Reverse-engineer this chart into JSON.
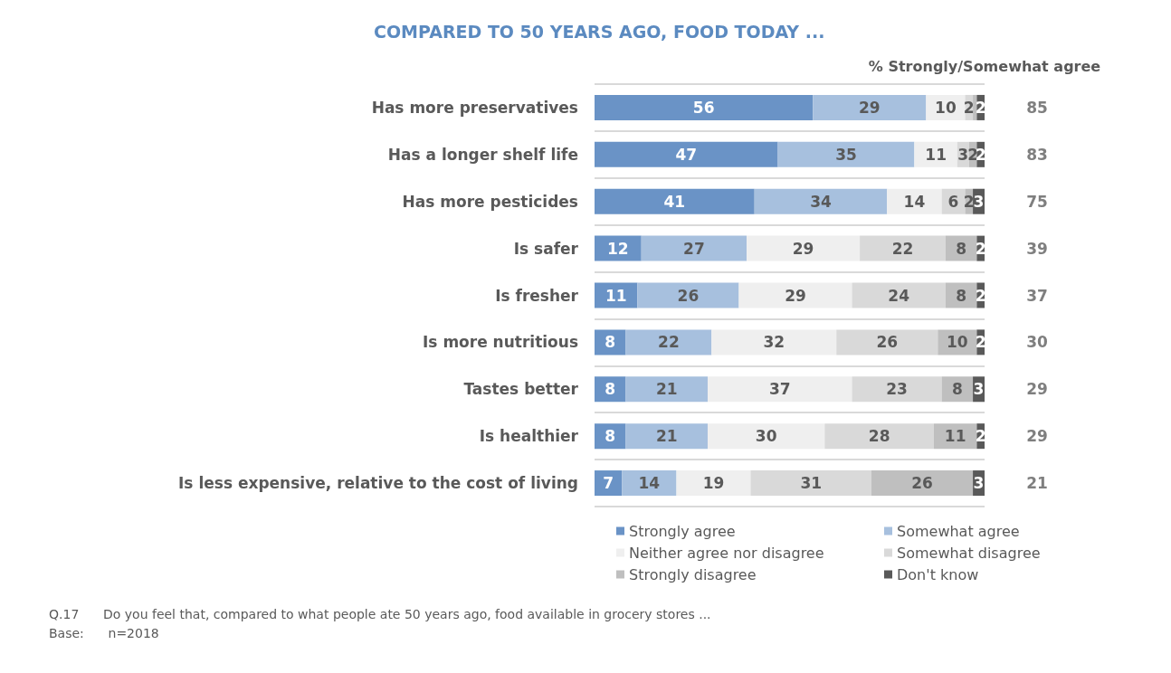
{
  "chart_data": {
    "type": "bar",
    "orientation": "horizontal",
    "stacked": true,
    "title": "COMPARED TO 50 YEARS AGO, FOOD TODAY ...",
    "y2label": "% Strongly/Somewhat agree",
    "categories": [
      "Has more preservatives",
      "Has a longer shelf life",
      "Has more pesticides",
      "Is safer",
      "Is fresher",
      "Is more nutritious",
      "Tastes better",
      "Is healthier",
      "Is less expensive, relative to the cost of living"
    ],
    "series": [
      {
        "name": "Strongly agree",
        "color": "#6a93c6",
        "values": [
          56,
          47,
          41,
          12,
          11,
          8,
          8,
          8,
          7
        ]
      },
      {
        "name": "Somewhat agree",
        "color": "#a7c0de",
        "values": [
          29,
          35,
          34,
          27,
          26,
          22,
          21,
          21,
          14
        ]
      },
      {
        "name": "Neither agree nor disagree",
        "color": "#efefef",
        "values": [
          10,
          11,
          14,
          29,
          29,
          32,
          37,
          30,
          19
        ]
      },
      {
        "name": "Somewhat disagree",
        "color": "#d9d9d9",
        "values": [
          2,
          3,
          6,
          22,
          24,
          26,
          23,
          28,
          31
        ]
      },
      {
        "name": "Strongly disagree",
        "color": "#bfbfbf",
        "values": [
          1,
          2,
          2,
          8,
          8,
          10,
          8,
          11,
          26
        ],
        "value_labels": [
          null,
          "2",
          "2",
          "8",
          "8",
          "10",
          "8",
          "11",
          "26"
        ]
      },
      {
        "name": "Don't know",
        "color": "#595959",
        "values": [
          2,
          2,
          3,
          2,
          2,
          2,
          3,
          2,
          3
        ]
      }
    ],
    "data_labels": true,
    "grid": "y",
    "legend": "bottom",
    "annotations": [
      "85",
      "83",
      "75",
      "39",
      "37",
      "30",
      "29",
      "29",
      "21",
      "Q.17      Do you feel that, compared to what people ate 50 years ago, food available in grocery stores ...",
      "Base:      n=2018"
    ]
  }
}
